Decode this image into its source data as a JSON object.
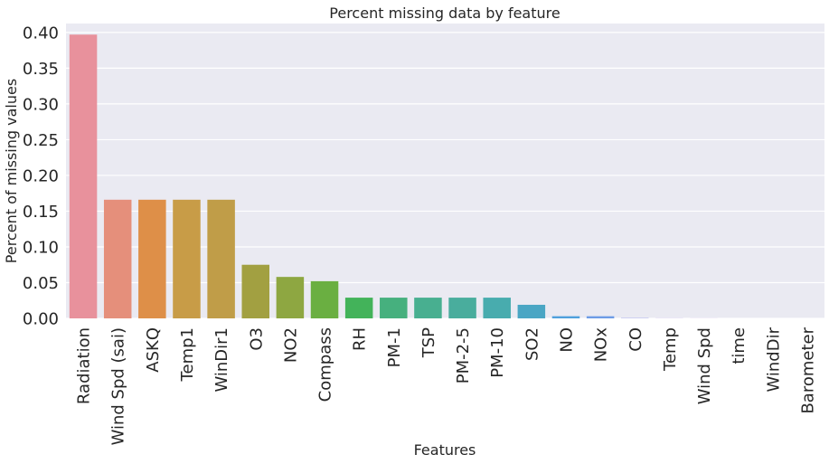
{
  "chart_data": {
    "type": "bar",
    "title": "Percent missing data by feature",
    "xlabel": "Features",
    "ylabel": "Percent of missing values",
    "ylim": [
      0,
      0.4125
    ],
    "yticks": [
      "0.00",
      "0.05",
      "0.10",
      "0.15",
      "0.20",
      "0.25",
      "0.30",
      "0.35",
      "0.40"
    ],
    "grid": true,
    "categories": [
      "Radiation",
      "Wind Spd (sai)",
      "ASKQ",
      "Temp1",
      "WinDir1",
      "O3",
      "NO2",
      "Compass",
      "RH",
      "PM-1",
      "TSP",
      "PM-2-5",
      "PM-10",
      "SO2",
      "NO",
      "NOx",
      "CO",
      "Temp",
      "Wind Spd",
      "time",
      "WindDir",
      "Barometer"
    ],
    "values": [
      0.397,
      0.166,
      0.166,
      0.166,
      0.166,
      0.075,
      0.058,
      0.052,
      0.029,
      0.029,
      0.029,
      0.029,
      0.029,
      0.019,
      0.003,
      0.003,
      0.0005,
      0.0002,
      0.0001,
      0.0,
      0.0,
      0.0
    ],
    "colors": [
      "#e8919c",
      "#e58f7b",
      "#de8f48",
      "#c89c47",
      "#c09d48",
      "#a2a041",
      "#8ea741",
      "#6aaf41",
      "#43b35a",
      "#46b07e",
      "#48af90",
      "#49ad9d",
      "#48acae",
      "#4aa6c4",
      "#4fa0dc",
      "#6e9ce6",
      "#999ce8",
      "#b49ae6",
      "#c691e2",
      "#d88be0",
      "#e286c5",
      "#e589a6"
    ],
    "colors_note": "husl-like palette across bars"
  }
}
